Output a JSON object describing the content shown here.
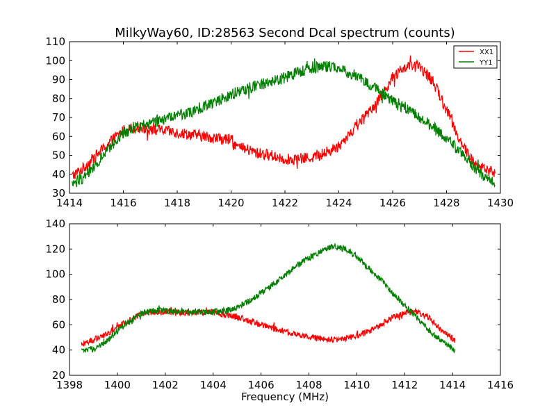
{
  "chart_data": [
    {
      "type": "line",
      "title": "MilkyWay60, ID:28563 Second Dcal spectrum (counts)",
      "xlabel": "",
      "ylabel": "",
      "xlim": [
        1414,
        1430
      ],
      "ylim": [
        30,
        110
      ],
      "xticks": [
        1414,
        1416,
        1418,
        1420,
        1422,
        1424,
        1426,
        1428,
        1430
      ],
      "yticks": [
        30,
        40,
        50,
        60,
        70,
        80,
        90,
        100,
        110
      ],
      "grid": false,
      "legend": "top-right",
      "series": [
        {
          "name": "XX1",
          "color": "#ff0000",
          "noise": 3,
          "x": [
            1414.1,
            1414.5,
            1415.0,
            1415.5,
            1416.0,
            1416.5,
            1417.0,
            1417.5,
            1418.0,
            1418.5,
            1419.0,
            1419.5,
            1420.0,
            1420.3,
            1420.6,
            1421.0,
            1421.5,
            1422.0,
            1422.5,
            1423.0,
            1423.5,
            1424.0,
            1424.5,
            1425.0,
            1425.5,
            1426.0,
            1426.5,
            1427.0,
            1427.5,
            1428.0,
            1428.5,
            1429.0,
            1429.5,
            1429.8
          ],
          "y": [
            39,
            43,
            50,
            57,
            63,
            65,
            64,
            63,
            62,
            61,
            60,
            59,
            58,
            54,
            53,
            51,
            50,
            48,
            48,
            49,
            51,
            55,
            63,
            71,
            80,
            91,
            97,
            97,
            89,
            74,
            58,
            46,
            42,
            41
          ]
        },
        {
          "name": "YY1",
          "color": "#008000",
          "noise": 3,
          "x": [
            1414.1,
            1414.5,
            1415.0,
            1415.5,
            1416.0,
            1416.5,
            1417.0,
            1417.5,
            1418.0,
            1418.5,
            1419.0,
            1419.5,
            1420.0,
            1420.5,
            1421.0,
            1421.5,
            1422.0,
            1422.5,
            1423.0,
            1423.5,
            1424.0,
            1424.5,
            1425.0,
            1425.5,
            1426.0,
            1426.5,
            1427.0,
            1427.5,
            1428.0,
            1428.5,
            1429.0,
            1429.5,
            1429.8
          ],
          "y": [
            35,
            38,
            45,
            54,
            62,
            65,
            67,
            69,
            71,
            73,
            76,
            79,
            82,
            85,
            87,
            89,
            91,
            94,
            96,
            97,
            96,
            93,
            89,
            84,
            79,
            75,
            70,
            65,
            59,
            52,
            44,
            38,
            35
          ]
        }
      ]
    },
    {
      "type": "line",
      "title": "",
      "xlabel": "Frequency (MHz)",
      "ylabel": "",
      "xlim": [
        1398,
        1416
      ],
      "ylim": [
        20,
        140
      ],
      "xticks": [
        1398,
        1400,
        1402,
        1404,
        1406,
        1408,
        1410,
        1412,
        1414,
        1416
      ],
      "yticks": [
        20,
        40,
        60,
        80,
        100,
        120,
        140
      ],
      "grid": false,
      "series": [
        {
          "color": "#ff0000",
          "noise": 2.5,
          "x": [
            1398.5,
            1399.0,
            1399.5,
            1400.0,
            1400.5,
            1401.0,
            1401.5,
            1402.0,
            1402.5,
            1403.0,
            1403.5,
            1404.0,
            1404.5,
            1405.0,
            1405.5,
            1406.0,
            1406.5,
            1407.0,
            1407.5,
            1408.0,
            1408.5,
            1409.0,
            1409.5,
            1410.0,
            1410.5,
            1411.0,
            1411.5,
            1412.0,
            1412.5,
            1413.0,
            1413.5,
            1414.0,
            1414.1
          ],
          "y": [
            45,
            48,
            52,
            58,
            64,
            69,
            70,
            70,
            70,
            70,
            70,
            70,
            68,
            66,
            63,
            60,
            57,
            55,
            52,
            50,
            49,
            48,
            49,
            51,
            55,
            60,
            66,
            70,
            70,
            66,
            57,
            49,
            47
          ]
        },
        {
          "color": "#008000",
          "noise": 2.5,
          "x": [
            1398.5,
            1399.0,
            1399.5,
            1400.0,
            1400.5,
            1401.0,
            1401.5,
            1402.0,
            1402.5,
            1403.0,
            1403.5,
            1404.0,
            1404.5,
            1405.0,
            1405.5,
            1406.0,
            1406.5,
            1407.0,
            1407.5,
            1408.0,
            1408.5,
            1409.0,
            1409.5,
            1410.0,
            1410.5,
            1411.0,
            1411.5,
            1412.0,
            1412.5,
            1413.0,
            1413.5,
            1414.0,
            1414.1
          ],
          "y": [
            39,
            41,
            46,
            55,
            63,
            69,
            71,
            71,
            71,
            70,
            70,
            70,
            71,
            74,
            79,
            85,
            92,
            99,
            107,
            113,
            118,
            122,
            120,
            114,
            105,
            96,
            85,
            75,
            66,
            56,
            48,
            41,
            40
          ]
        }
      ]
    }
  ]
}
